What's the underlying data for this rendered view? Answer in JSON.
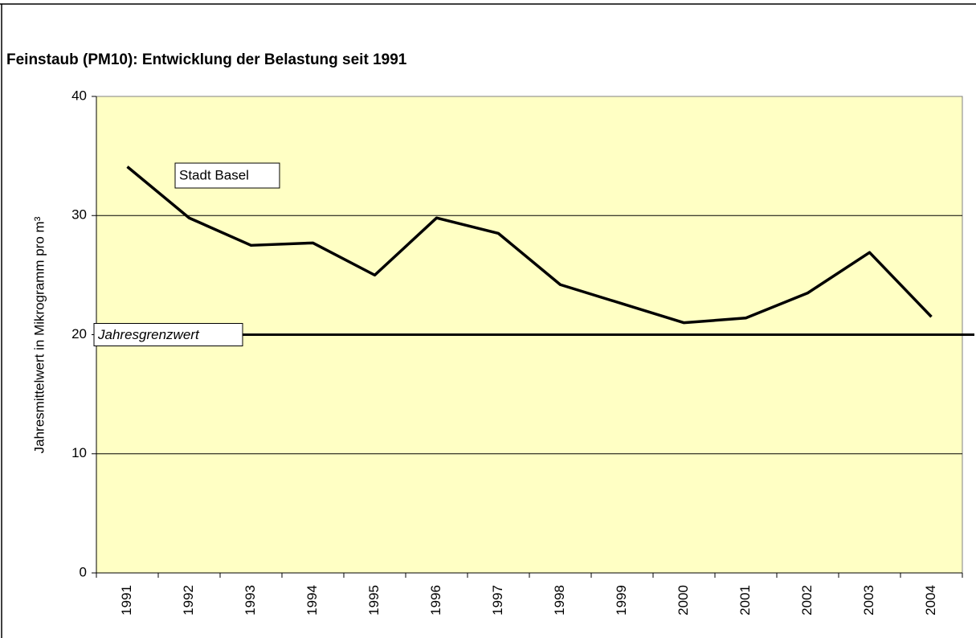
{
  "chart_data": {
    "type": "line",
    "title": "Feinstaub (PM10): Entwicklung der Belastung seit 1991",
    "y_label": "Jahresmittelwert in Mikrogramm pro m³",
    "categories": [
      "1991",
      "1992",
      "1993",
      "1994",
      "1995",
      "1996",
      "1997",
      "1998",
      "1999",
      "2000",
      "2001",
      "2002",
      "2003",
      "2004"
    ],
    "series": [
      {
        "name": "Stadt Basel",
        "color": "#000000",
        "values": [
          34.1,
          29.8,
          27.5,
          27.7,
          25.0,
          29.8,
          28.5,
          24.2,
          22.6,
          21.0,
          21.4,
          23.5,
          26.9,
          21.5
        ]
      }
    ],
    "reference_line": {
      "label": "Jahresgrenzwert",
      "value": 20,
      "color": "#000000"
    },
    "ylim": [
      0,
      40
    ],
    "yticks": [
      0,
      10,
      20,
      30,
      40
    ],
    "grid": true,
    "plot_background": "#ffffc4"
  }
}
